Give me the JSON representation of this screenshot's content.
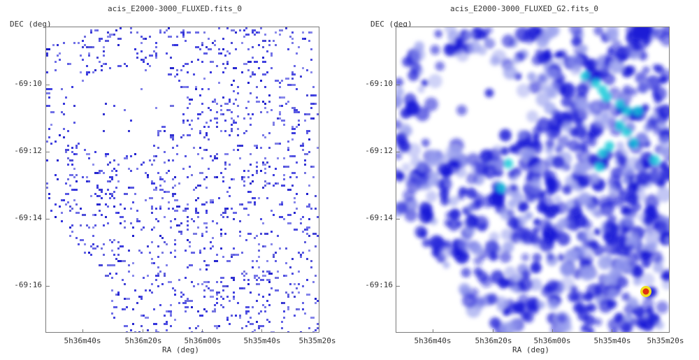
{
  "panels": [
    {
      "title": "acis_E2000-3000_FLUXED.fits_0",
      "ylabel": "DEC (deg)",
      "xlabel": "RA (deg)",
      "yticks": [
        "-69:10",
        "-69:12",
        "-69:14",
        "-69:16"
      ],
      "xticks": [
        "5h36m40s",
        "5h36m20s",
        "5h36m00s",
        "5h35m40s",
        "5h35m20s"
      ],
      "colormap": "blue-sparse",
      "colors": {
        "pixel": "#3333dd",
        "pixel_dark": "#1a1acc"
      }
    },
    {
      "title": "acis_E2000-3000_FLUXED_G2.fits_0",
      "ylabel": "DEC (deg)",
      "xlabel": "RA (deg)",
      "yticks": [
        "-69:10",
        "-69:12",
        "-69:14",
        "-69:16"
      ],
      "xticks": [
        "5h36m40s",
        "5h36m20s",
        "5h36m00s",
        "5h35m40s",
        "5h35m20s"
      ],
      "colormap": "smoothed-blue-cyan",
      "colors": {
        "low": "#9aa0ee",
        "mid": "#1a1ad6",
        "high": "#10c8d8",
        "peak": "#e03010",
        "peak_ring": "#f0e020"
      }
    }
  ]
}
